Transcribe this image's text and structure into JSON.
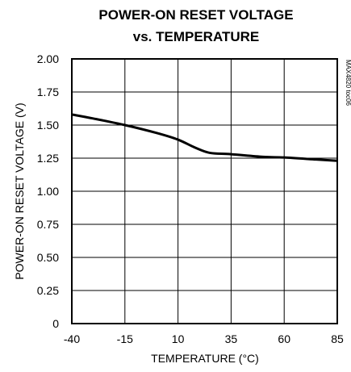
{
  "chart_data": {
    "type": "line",
    "title_lines": [
      "POWER-ON RESET VOLTAGE",
      "vs. TEMPERATURE"
    ],
    "xlabel": "TEMPERATURE (°C)",
    "ylabel": "POWER-ON RESET VOLTAGE (V)",
    "figure_code": "MAX4820 toc06",
    "xlim": [
      -40,
      85
    ],
    "ylim": [
      0,
      2.0
    ],
    "x_ticks": [
      -40,
      -15,
      10,
      35,
      60,
      85
    ],
    "y_ticks": [
      0,
      0.25,
      0.5,
      0.75,
      1.0,
      1.25,
      1.5,
      1.75,
      2.0
    ],
    "x_tick_labels": [
      "-40",
      "-15",
      "10",
      "35",
      "60",
      "85"
    ],
    "y_tick_labels": [
      "0",
      "0.25",
      "0.50",
      "0.75",
      "1.00",
      "1.25",
      "1.50",
      "1.75",
      "2.00"
    ],
    "grid": true,
    "series": [
      {
        "x": [
          -40,
          -30,
          -15,
          0,
          10,
          18,
          25,
          35,
          50,
          60,
          75,
          85
        ],
        "y": [
          1.58,
          1.55,
          1.5,
          1.44,
          1.39,
          1.33,
          1.29,
          1.28,
          1.26,
          1.255,
          1.24,
          1.23
        ]
      }
    ]
  }
}
